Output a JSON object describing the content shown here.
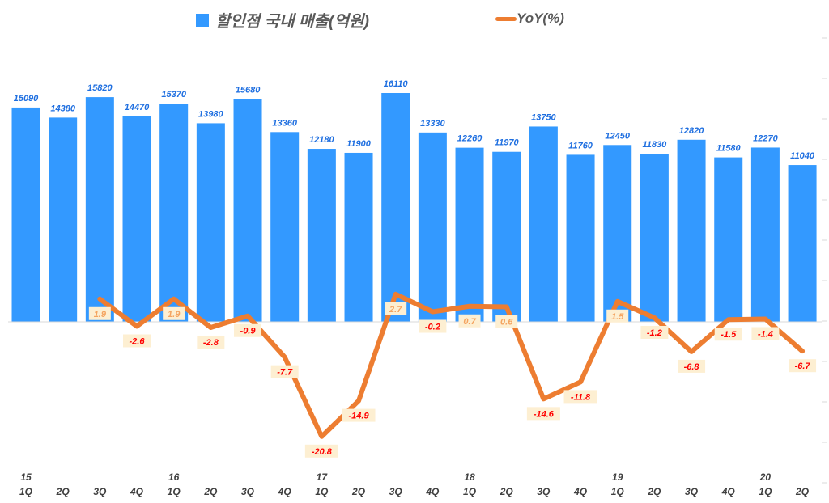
{
  "chart_data": {
    "type": "bar+line",
    "categories": [
      "1Q",
      "2Q",
      "3Q",
      "4Q",
      "1Q",
      "2Q",
      "3Q",
      "4Q",
      "1Q",
      "2Q",
      "3Q",
      "4Q",
      "1Q",
      "2Q",
      "3Q",
      "4Q",
      "1Q",
      "2Q",
      "3Q",
      "4Q",
      "1Q",
      "2Q"
    ],
    "year_labels": [
      "15",
      "",
      "",
      "",
      "16",
      "",
      "",
      "",
      "17",
      "",
      "",
      "",
      "18",
      "",
      "",
      "",
      "19",
      "",
      "",
      "",
      "20",
      ""
    ],
    "series": [
      {
        "name": "할인점 국내 매출(억원)",
        "type": "bar",
        "color": "#3399FF",
        "values": [
          15090,
          14380,
          15820,
          14470,
          15370,
          13980,
          15680,
          13360,
          12180,
          11900,
          16110,
          13330,
          12260,
          11970,
          13750,
          11760,
          12450,
          11830,
          12820,
          11580,
          12270,
          11040
        ]
      },
      {
        "name": "YoY(%)",
        "type": "line",
        "color": "#ED7D31",
        "values": [
          null,
          null,
          1.9,
          -2.6,
          1.9,
          -2.8,
          -0.9,
          -7.7,
          -20.8,
          -14.9,
          2.7,
          -0.2,
          0.7,
          0.6,
          -14.6,
          -11.8,
          1.5,
          -1.2,
          -6.8,
          -1.5,
          -1.4,
          -6.7
        ]
      }
    ],
    "label_colors": {
      "bar": "#1F6FE0",
      "positive": "#F4A460",
      "negative": "#FF0000",
      "label_bg": "#FDEFD2"
    }
  }
}
